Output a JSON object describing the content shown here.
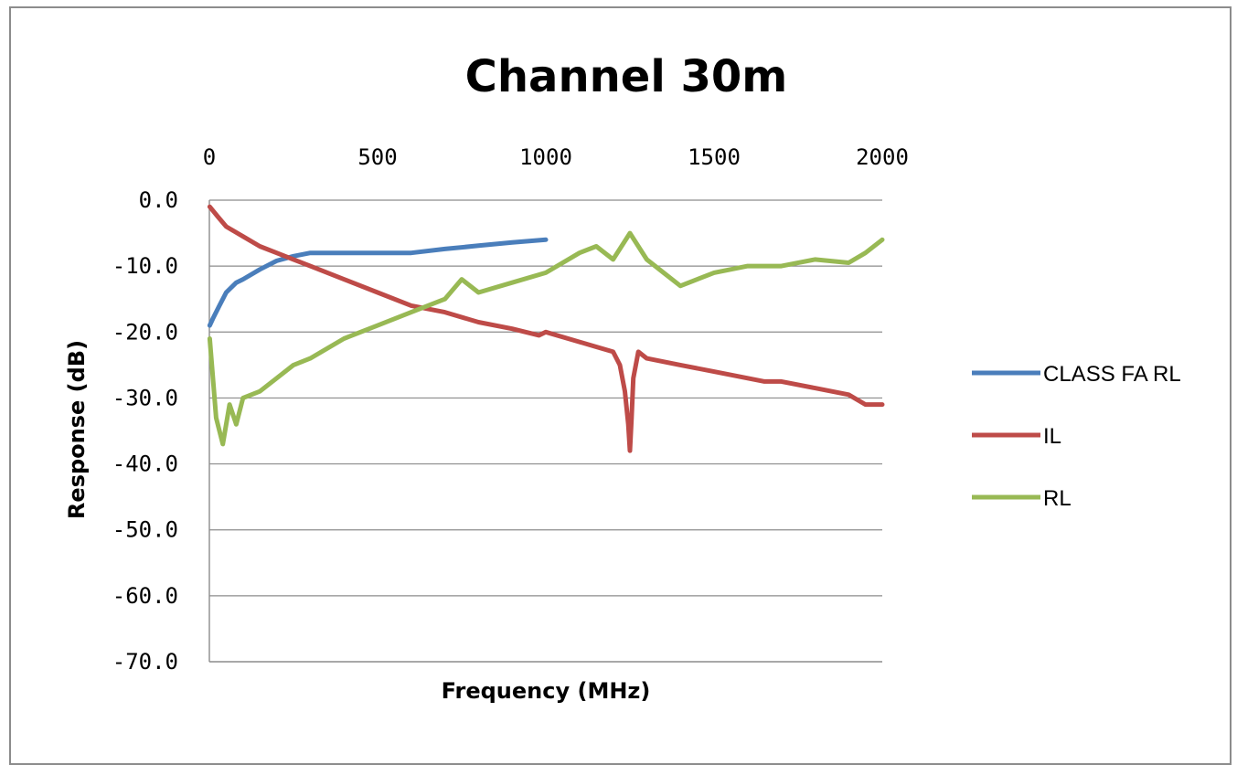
{
  "chart_data": {
    "type": "line",
    "title": "Channel 30m",
    "xlabel": "Frequency (MHz)",
    "ylabel": "Response (dB)",
    "xlim": [
      0,
      2000
    ],
    "ylim": [
      -70,
      0
    ],
    "x_axis_position": "top",
    "x_ticks": [
      "0",
      "500",
      "1000",
      "1500",
      "2000"
    ],
    "y_ticks": [
      "0.0",
      "-10.0",
      "-20.0",
      "-30.0",
      "-40.0",
      "-50.0",
      "-60.0",
      "-70.0"
    ],
    "grid": "horizontal",
    "legend_position": "right",
    "series": [
      {
        "name": "CLASS FA RL",
        "color": "#4a7ebb",
        "x": [
          1,
          10,
          30,
          50,
          80,
          100,
          150,
          200,
          250,
          300,
          400,
          600,
          700,
          800,
          900,
          1000
        ],
        "y": [
          -19,
          -18,
          -16,
          -14,
          -12.5,
          -12,
          -10.5,
          -9.2,
          -8.5,
          -8,
          -8,
          -8,
          -7.4,
          -6.9,
          -6.4,
          -6
        ]
      },
      {
        "name": "IL",
        "color": "#be4b48",
        "x": [
          1,
          25,
          50,
          100,
          150,
          200,
          250,
          300,
          400,
          500,
          600,
          700,
          800,
          900,
          980,
          1000,
          1100,
          1200,
          1220,
          1235,
          1245,
          1250,
          1255,
          1260,
          1275,
          1300,
          1400,
          1500,
          1600,
          1650,
          1700,
          1800,
          1900,
          1950,
          2000
        ],
        "y": [
          -1,
          -2.5,
          -4,
          -5.5,
          -7,
          -8,
          -9,
          -10,
          -12,
          -14,
          -16,
          -17,
          -18.5,
          -19.5,
          -20.5,
          -20,
          -21.5,
          -23,
          -25,
          -29,
          -34,
          -38,
          -33,
          -27,
          -23,
          -24,
          -25,
          -26,
          -27,
          -27.5,
          -27.5,
          -28.5,
          -29.5,
          -31,
          -31
        ]
      },
      {
        "name": "RL",
        "color": "#98b954",
        "x": [
          1,
          20,
          40,
          60,
          80,
          100,
          150,
          200,
          250,
          300,
          400,
          500,
          600,
          700,
          750,
          800,
          900,
          1000,
          1100,
          1150,
          1200,
          1250,
          1300,
          1350,
          1400,
          1500,
          1600,
          1700,
          1800,
          1900,
          1950,
          2000
        ],
        "y": [
          -21,
          -33,
          -37,
          -31,
          -34,
          -30,
          -29,
          -27,
          -25,
          -24,
          -21,
          -19,
          -17,
          -15,
          -12,
          -14,
          -12.5,
          -11,
          -8,
          -7,
          -9,
          -5,
          -9,
          -11,
          -13,
          -11,
          -10,
          -10,
          -9,
          -9.5,
          -8,
          -6
        ]
      }
    ]
  }
}
